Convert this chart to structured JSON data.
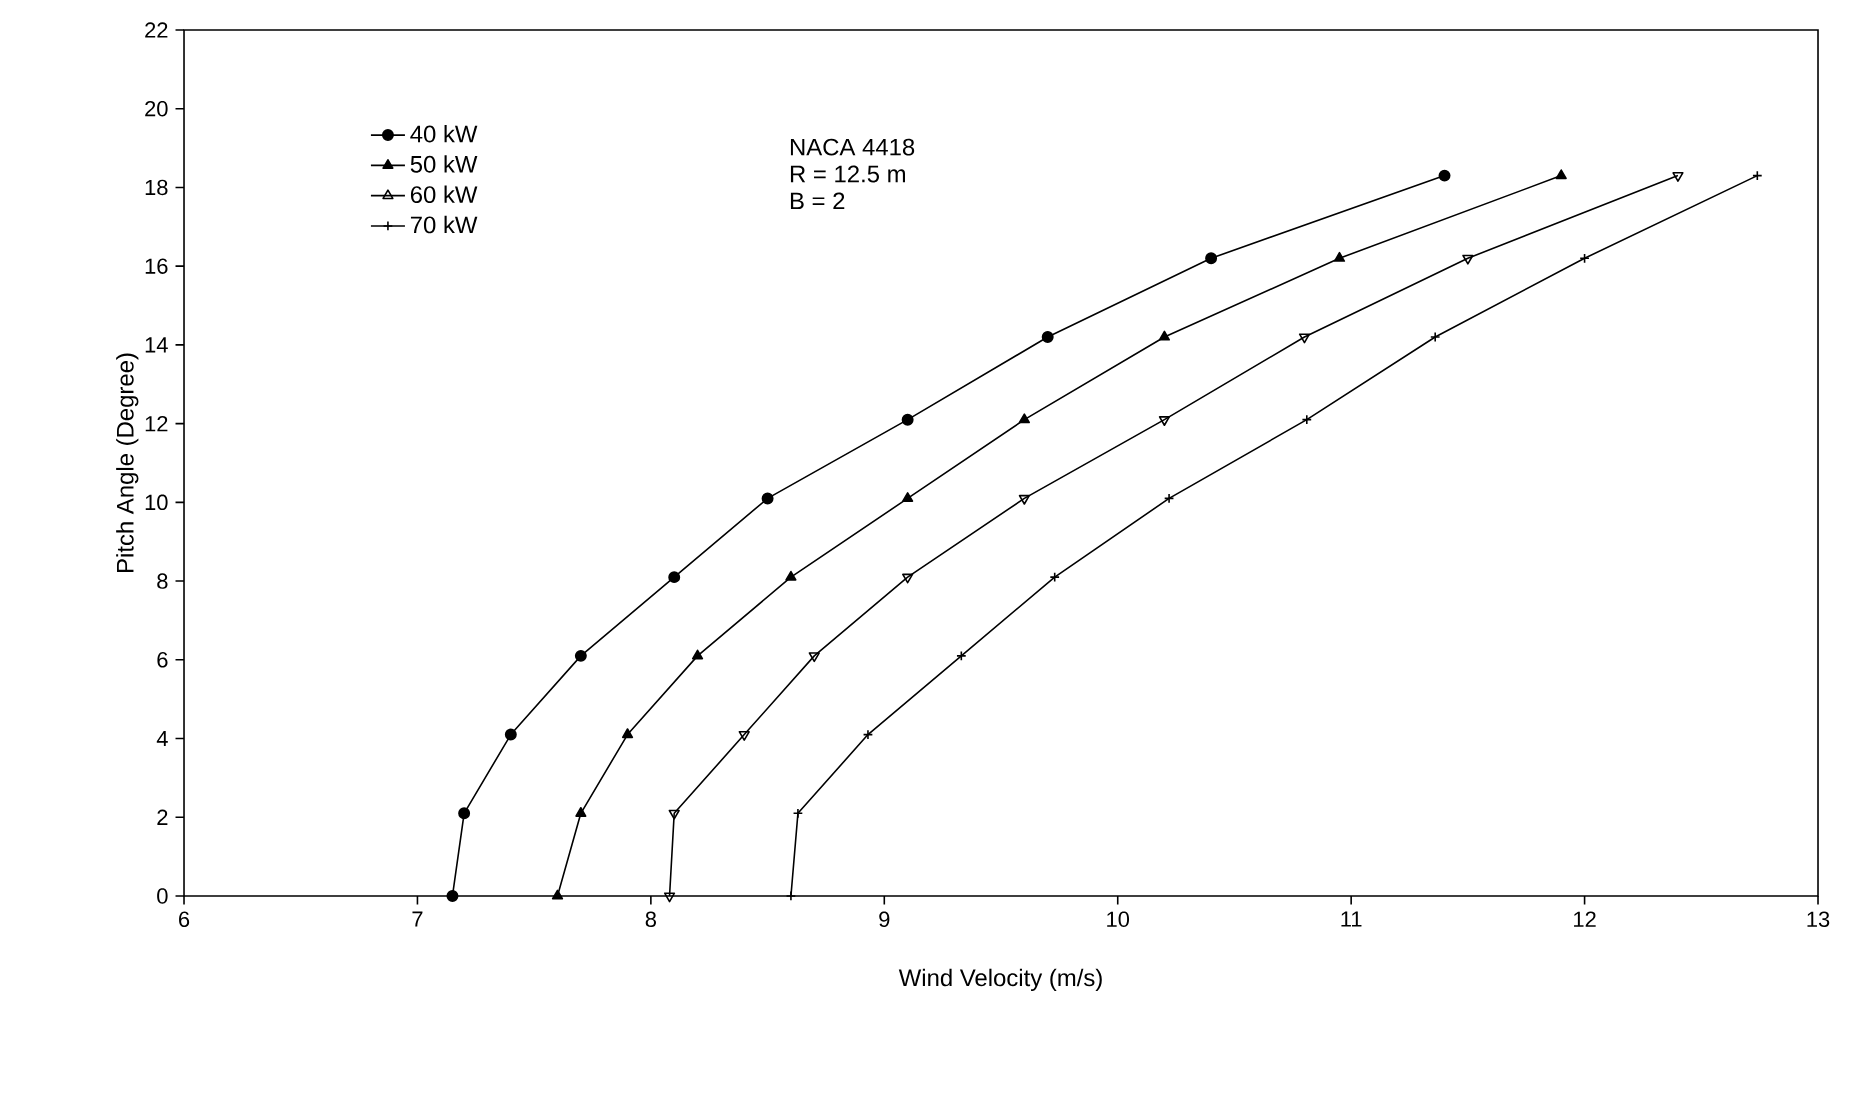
{
  "chart_data": {
    "type": "line",
    "xlabel": "Wind Velocity (m/s)",
    "ylabel": "Pitch Angle (Degree)",
    "annotations": [
      "NACA 4418",
      "R = 12.5 m",
      "B = 2"
    ],
    "xlim": [
      6,
      13
    ],
    "ylim": [
      0,
      22
    ],
    "xticks": [
      6,
      7,
      8,
      9,
      10,
      11,
      12,
      13
    ],
    "yticks": [
      0,
      2,
      4,
      6,
      8,
      10,
      12,
      14,
      16,
      18,
      20,
      22
    ],
    "grid": false,
    "legend": "top left",
    "line_style": "solid",
    "series": [
      {
        "name": "40 kW",
        "color": "#000000",
        "marker": "circle",
        "x": [
          7.15,
          7.2,
          7.4,
          7.7,
          8.1,
          8.5,
          9.1,
          9.7,
          10.4,
          11.4
        ],
        "values": [
          0,
          2.1,
          4.1,
          6.1,
          8.1,
          10.1,
          12.1,
          14.2,
          16.2,
          18.3
        ]
      },
      {
        "name": "50 kW",
        "color": "#000000",
        "marker": "triangle",
        "x": [
          7.6,
          7.7,
          7.9,
          8.2,
          8.6,
          9.1,
          9.6,
          10.2,
          10.95,
          11.9
        ],
        "values": [
          0,
          2.1,
          4.1,
          6.1,
          8.1,
          10.1,
          12.1,
          14.2,
          16.2,
          18.3
        ]
      },
      {
        "name": "60 kW",
        "color": "#000000",
        "marker": "triangle-down",
        "x": [
          8.08,
          8.1,
          8.4,
          8.7,
          9.1,
          9.6,
          10.2,
          10.8,
          11.5,
          12.4
        ],
        "values": [
          0,
          2.1,
          4.1,
          6.1,
          8.1,
          10.1,
          12.1,
          14.2,
          16.2,
          18.3
        ]
      },
      {
        "name": "70 kW",
        "color": "#000000",
        "marker": "cross",
        "x": [
          8.6,
          8.63,
          8.93,
          9.33,
          9.73,
          10.22,
          10.81,
          11.36,
          12.0,
          12.74
        ],
        "values": [
          0,
          2.1,
          4.1,
          6.1,
          8.1,
          10.1,
          12.1,
          14.2,
          16.2,
          18.3
        ]
      }
    ]
  }
}
